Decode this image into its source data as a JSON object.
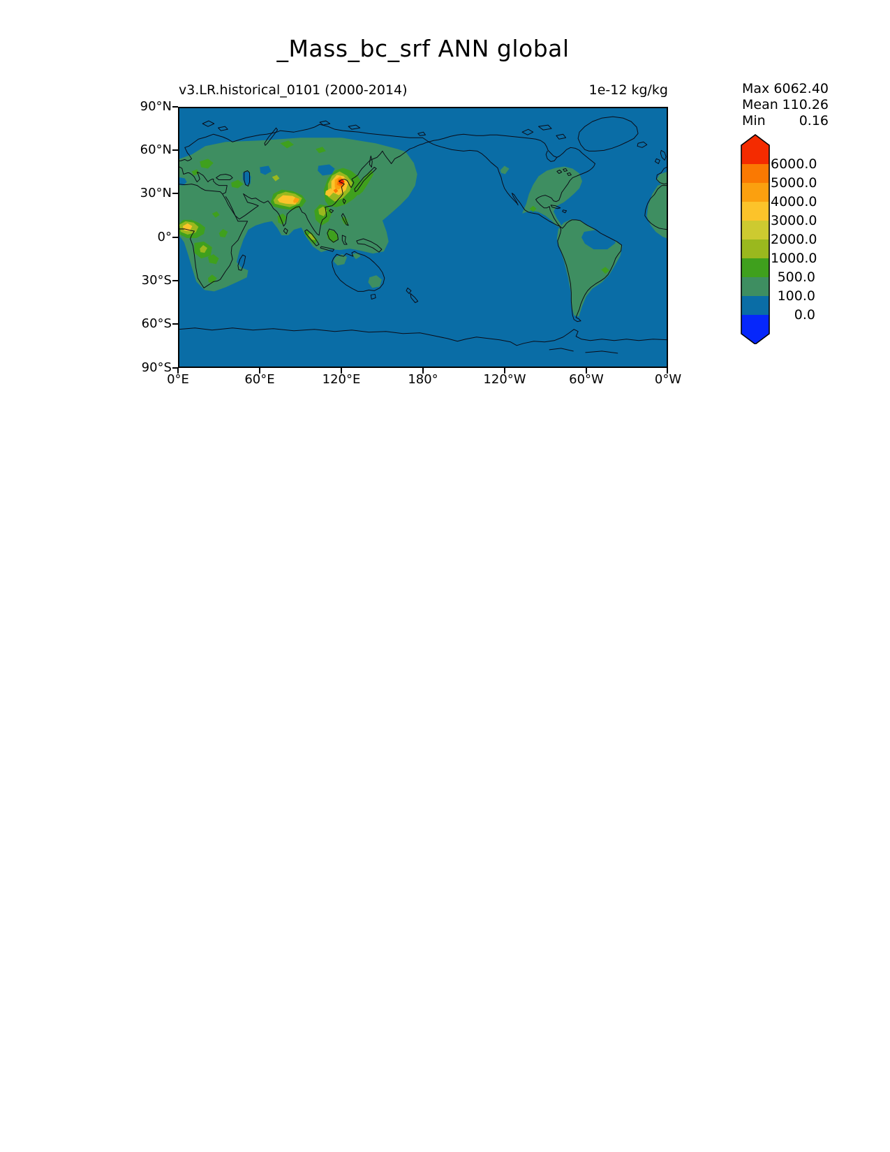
{
  "title": "_Mass_bc_srf ANN global",
  "subtitle_left": "v3.LR.historical_0101 (2000-2014)",
  "units_label": "1e-12 kg/kg",
  "stats": {
    "max_label": "Max",
    "max_value": "6062.40",
    "mean_label": "Mean",
    "mean_value": "110.26",
    "min_label": "Min",
    "min_value": "0.16"
  },
  "chart_data": {
    "type": "heatmap",
    "subtype": "filled-contour global map",
    "title": "_Mass_bc_srf ANN global",
    "case_label": "v3.LR.historical_0101 (2000-2014)",
    "units": "1e-12 kg/kg",
    "projection": "equirectangular, longitude 0°E eastward to 0°W (centered near 180°)",
    "x_tick_labels": [
      "0°E",
      "60°E",
      "120°E",
      "180°",
      "120°W",
      "60°W",
      "0°W"
    ],
    "y_tick_labels": [
      "90°N",
      "60°N",
      "30°N",
      "0°",
      "30°S",
      "60°S",
      "90°S"
    ],
    "stats": {
      "max": 6062.4,
      "mean": 110.26,
      "min": 0.16
    },
    "colorbar": {
      "orientation": "vertical",
      "extend": "both",
      "levels": [
        0.0,
        100.0,
        500.0,
        1000.0,
        2000.0,
        3000.0,
        4000.0,
        5000.0,
        6000.0
      ],
      "tick_labels": [
        "6000.0",
        "5000.0",
        "4000.0",
        "3000.0",
        "2000.0",
        "1000.0",
        "500.0",
        "100.0",
        "0.0"
      ],
      "colors_top_to_bottom": [
        "#f42b00",
        "#fa7902",
        "#fba00f",
        "#fcc32a",
        "#cdca30",
        "#9ab81e",
        "#3fa01d",
        "#3e8e61",
        "#0a6da6",
        "#0627fb"
      ]
    },
    "field_description": [
      {
        "area": "North China Plain / East Asia hotspot",
        "level": "> 6000"
      },
      {
        "area": "Eastern China and Korea ring around hotspot",
        "level": "2000-6000"
      },
      {
        "area": "Indo-Gangetic Plain, northern India (small orange spot NE India)",
        "level": "2000-4000"
      },
      {
        "area": "South and Southeast Asia, Indochina",
        "level": "500-2000"
      },
      {
        "area": "West Africa near Gulf of Guinea (yellow core)",
        "level": "1000-3000"
      },
      {
        "area": "Central Africa (Congo), East Africa, southern Africa spots",
        "level": "500-2000"
      },
      {
        "area": "Europe, Russia, Middle East, most African land",
        "level": "100-1000"
      },
      {
        "area": "Eastern North America, Mexico, Central America",
        "level": "100-500"
      },
      {
        "area": "South America except northwest Amazon hole; green spot near Sao Paulo",
        "level": "100-1000"
      },
      {
        "area": "Maritime Continent (Sumatra, Borneo, Java)",
        "level": "500-2000"
      },
      {
        "area": "Oceans, Australia interior, Greenland, high latitudes, Antarctica",
        "level": "0-100"
      }
    ],
    "grid": false,
    "coastlines": true
  }
}
